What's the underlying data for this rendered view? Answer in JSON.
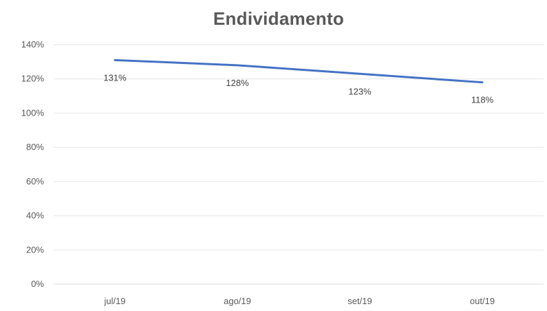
{
  "chart_data": {
    "type": "line",
    "title": "Endividamento",
    "categories": [
      "jul/19",
      "ago/19",
      "set/19",
      "out/19"
    ],
    "series": [
      {
        "values": [
          131,
          128,
          123,
          118
        ],
        "color": "#4472C4"
      }
    ],
    "data_labels": [
      "131%",
      "128%",
      "123%",
      "118%"
    ],
    "yticks": [
      0,
      20,
      40,
      60,
      80,
      100,
      120,
      140
    ],
    "ytick_labels": [
      "0%",
      "20%",
      "40%",
      "60%",
      "80%",
      "100%",
      "120%",
      "140%"
    ],
    "ylim": [
      0,
      140
    ],
    "grid": true,
    "legend": "none"
  }
}
